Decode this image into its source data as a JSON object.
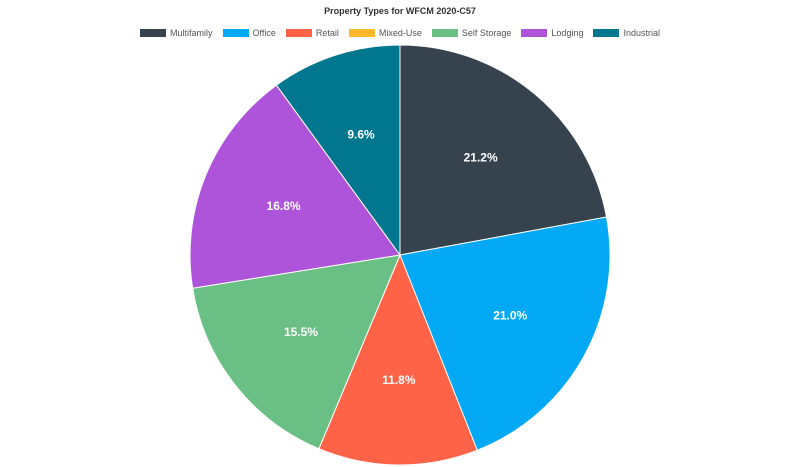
{
  "chart_data": {
    "type": "pie",
    "title": "Property Types for WFCM 2020-C57",
    "legend_position": "top",
    "slices": [
      {
        "name": "Multifamily",
        "value": 21.2,
        "label": "21.2%",
        "color": "#36434f"
      },
      {
        "name": "Office",
        "value": 21.0,
        "label": "21.0%",
        "color": "#03a9f4"
      },
      {
        "name": "Retail",
        "value": 11.8,
        "label": "11.8%",
        "color": "#ff6347"
      },
      {
        "name": "Mixed-Use",
        "value": 0.0,
        "label": "",
        "color": "#fdb92c"
      },
      {
        "name": "Self Storage",
        "value": 15.5,
        "label": "15.5%",
        "color": "#6abf84"
      },
      {
        "name": "Lodging",
        "value": 16.8,
        "label": "16.8%",
        "color": "#ad54db"
      },
      {
        "name": "Industrial",
        "value": 9.6,
        "label": "9.6%",
        "color": "#00768f"
      }
    ]
  }
}
